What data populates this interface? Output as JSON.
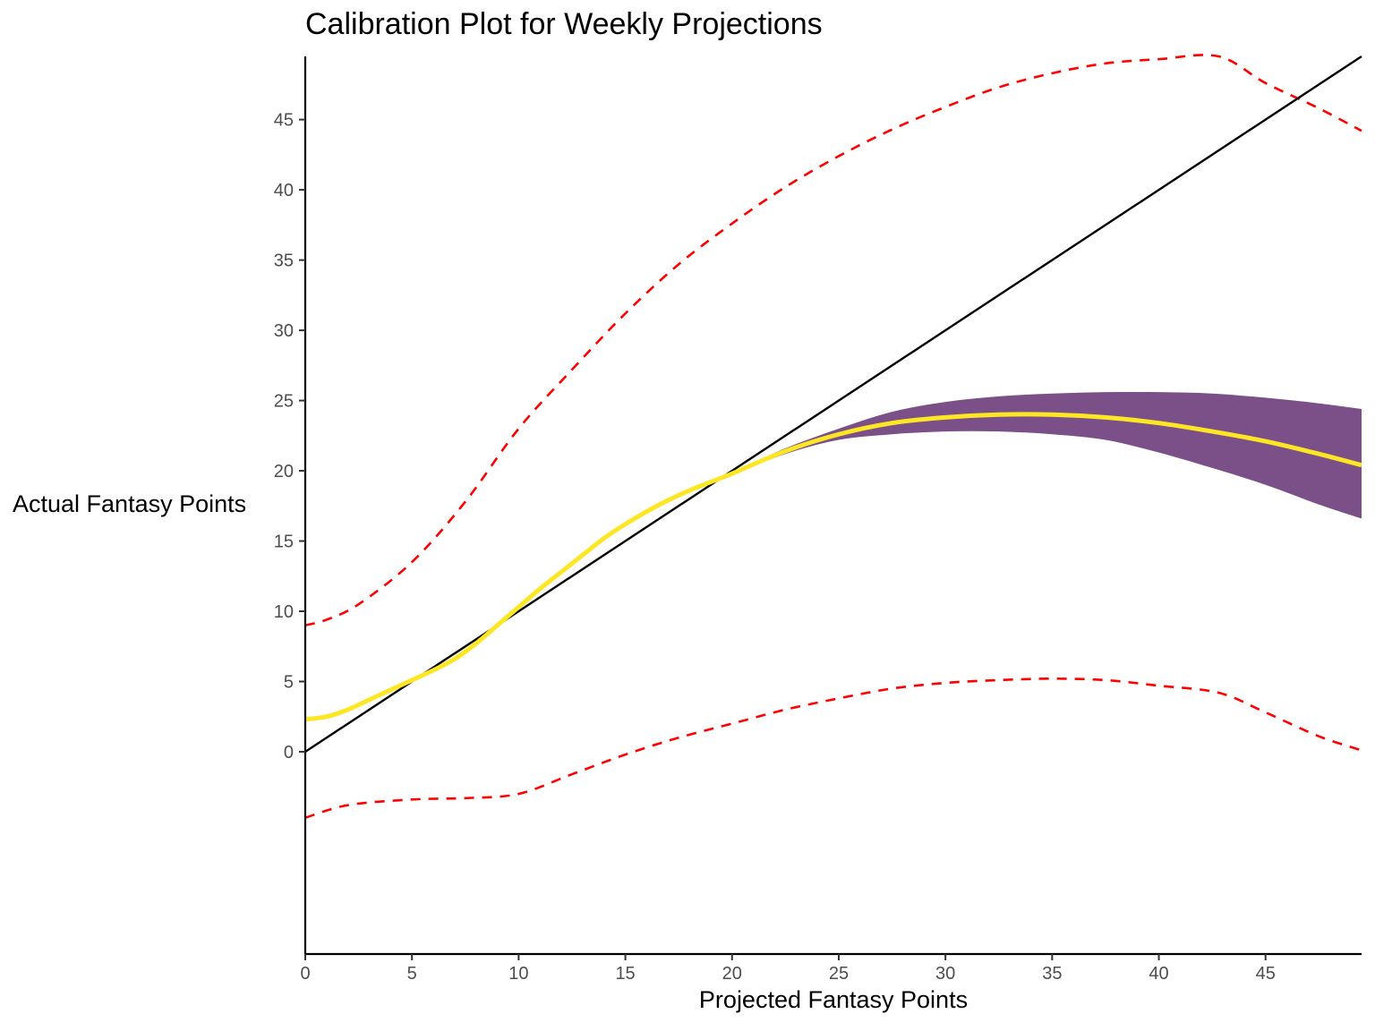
{
  "chart_data": {
    "type": "line",
    "title": "Calibration Plot for Weekly Projections",
    "xlabel": "Projected Fantasy Points",
    "ylabel": "Actual Fantasy Points",
    "xlim": [
      0,
      49.5
    ],
    "ylim": [
      -14.4,
      49.5
    ],
    "x_ticks": [
      0,
      5,
      10,
      15,
      20,
      25,
      30,
      35,
      40,
      45
    ],
    "y_ticks": [
      0,
      5,
      10,
      15,
      20,
      25,
      30,
      35,
      40,
      45
    ],
    "grid": false,
    "legend": "none",
    "series": [
      {
        "style": "dashed",
        "color": "#ff0000",
        "x": [
          0,
          1,
          2.5,
          5,
          7.5,
          10,
          12.5,
          15,
          17.5,
          20,
          22.5,
          25,
          27.5,
          30,
          32.5,
          35,
          37.5,
          40,
          42.8,
          45,
          47.5,
          49.5
        ],
        "y": [
          9,
          9.4,
          10.5,
          13.5,
          17.8,
          23,
          27.2,
          31.2,
          34.7,
          37.6,
          40.2,
          42.4,
          44.3,
          45.9,
          47.3,
          48.3,
          49,
          49.3,
          49.5,
          47.6,
          45.8,
          44.2
        ]
      },
      {
        "style": "dashed",
        "color": "#ff0000",
        "x": [
          0,
          2,
          5,
          7.5,
          10,
          12.5,
          15,
          17.5,
          20,
          22.5,
          25,
          27.5,
          30,
          32.5,
          35,
          37.5,
          40,
          42.8,
          45,
          47.5,
          49.5
        ],
        "y": [
          -4.7,
          -3.8,
          -3.4,
          -3.3,
          -3,
          -1.6,
          -0.2,
          1,
          2,
          3,
          3.8,
          4.5,
          4.9,
          5.1,
          5.2,
          5.1,
          4.7,
          4.2,
          2.8,
          1.1,
          0.1
        ]
      },
      {
        "style": "solid",
        "color": "#000000",
        "x": [
          0,
          49.5
        ],
        "y": [
          0,
          49.5
        ]
      },
      {
        "style": "solid",
        "color": "#fde725",
        "x": [
          0,
          1,
          2,
          3,
          4,
          5,
          6,
          7,
          8,
          9,
          10,
          11,
          12,
          13,
          14,
          15,
          16,
          17,
          18,
          19,
          20,
          22.5,
          25,
          27.5,
          30,
          32.5,
          35,
          37.5,
          40,
          42.5,
          45,
          47.5,
          49.5
        ],
        "y": [
          2.3,
          2.5,
          3,
          3.7,
          4.4,
          5.1,
          5.8,
          6.6,
          7.7,
          9,
          10.3,
          11.6,
          12.8,
          14,
          15.2,
          16.2,
          17.1,
          17.9,
          18.6,
          19.2,
          19.8,
          21.4,
          22.6,
          23.4,
          23.8,
          24,
          24,
          23.8,
          23.4,
          22.8,
          22.1,
          21.2,
          20.4
        ]
      }
    ],
    "band": {
      "color": "#7b4f87",
      "x": [
        18,
        20,
        22.5,
        25,
        27.5,
        30,
        32.5,
        35,
        37.5,
        40,
        42.5,
        45,
        47.5,
        49.5
      ],
      "upper": [
        18.7,
        19.9,
        21.6,
        23,
        24.2,
        24.9,
        25.3,
        25.5,
        25.6,
        25.6,
        25.5,
        25.2,
        24.8,
        24.4
      ],
      "lower": [
        18.5,
        19.7,
        21.2,
        22.2,
        22.6,
        22.8,
        22.8,
        22.6,
        22.2,
        21.3,
        20.2,
        19,
        17.6,
        16.6
      ]
    }
  }
}
